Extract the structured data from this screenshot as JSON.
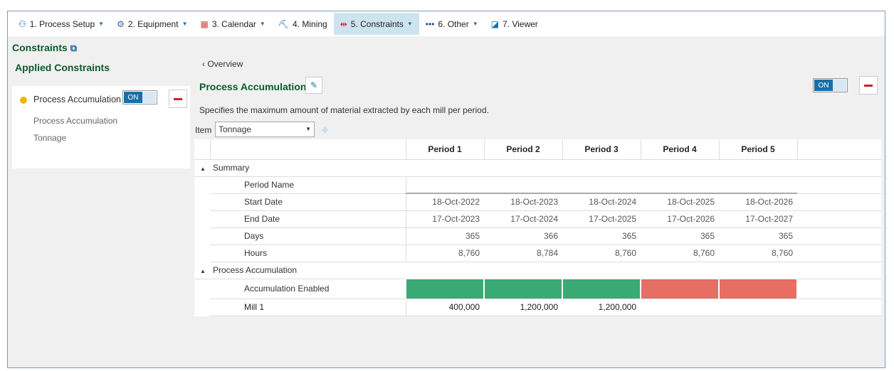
{
  "toolbar": {
    "items": [
      {
        "label": "1. Process Setup",
        "icon": "process-setup-icon",
        "dropdown": true
      },
      {
        "label": "2. Equipment",
        "icon": "equipment-icon",
        "dropdown": true
      },
      {
        "label": "3. Calendar",
        "icon": "calendar-icon",
        "dropdown": true
      },
      {
        "label": "4. Mining",
        "icon": "mining-icon",
        "dropdown": false
      },
      {
        "label": "5. Constraints",
        "icon": "constraints-icon",
        "dropdown": true,
        "active": true
      },
      {
        "label": "6. Other",
        "icon": "more-icon",
        "dropdown": true
      },
      {
        "label": "7. Viewer",
        "icon": "viewer-icon",
        "dropdown": false
      }
    ]
  },
  "sidebar": {
    "title": "Constraints",
    "applied_title": "Applied Constraints",
    "constraint": {
      "name": "Process Accumulation",
      "toggle": "ON",
      "details": [
        "Process Accumulation",
        "Tonnage"
      ],
      "status_color": "#f0b400"
    }
  },
  "main": {
    "back": "Overview",
    "title": "Process Accumulation",
    "toggle": "ON",
    "description": "Specifies the maximum amount of material extracted by each mill per period.",
    "item_label": "Item",
    "item_value": "Tonnage",
    "periods": [
      "Period 1",
      "Period 2",
      "Period 3",
      "Period 4",
      "Period 5"
    ],
    "summary": {
      "label": "Summary",
      "rows": [
        {
          "label": "Period Name",
          "values": [
            "",
            "",
            "",
            "",
            ""
          ]
        },
        {
          "label": "Start Date",
          "values": [
            "18-Oct-2022",
            "18-Oct-2023",
            "18-Oct-2024",
            "18-Oct-2025",
            "18-Oct-2026"
          ]
        },
        {
          "label": "End Date",
          "values": [
            "17-Oct-2023",
            "17-Oct-2024",
            "17-Oct-2025",
            "17-Oct-2026",
            "17-Oct-2027"
          ]
        },
        {
          "label": "Days",
          "values": [
            "365",
            "366",
            "365",
            "365",
            "365"
          ]
        },
        {
          "label": "Hours",
          "values": [
            "8,760",
            "8,784",
            "8,760",
            "8,760",
            "8,760"
          ]
        }
      ]
    },
    "accumulation": {
      "label": "Process Accumulation",
      "enabled_label": "Accumulation Enabled",
      "enabled": [
        true,
        true,
        true,
        false,
        false
      ],
      "mill": {
        "label": "Mill 1",
        "values": [
          "400,000",
          "1,200,000",
          "1,200,000",
          "",
          ""
        ]
      }
    },
    "colors": {
      "enabled": "#3aaa75",
      "disabled": "#e66e64"
    }
  }
}
